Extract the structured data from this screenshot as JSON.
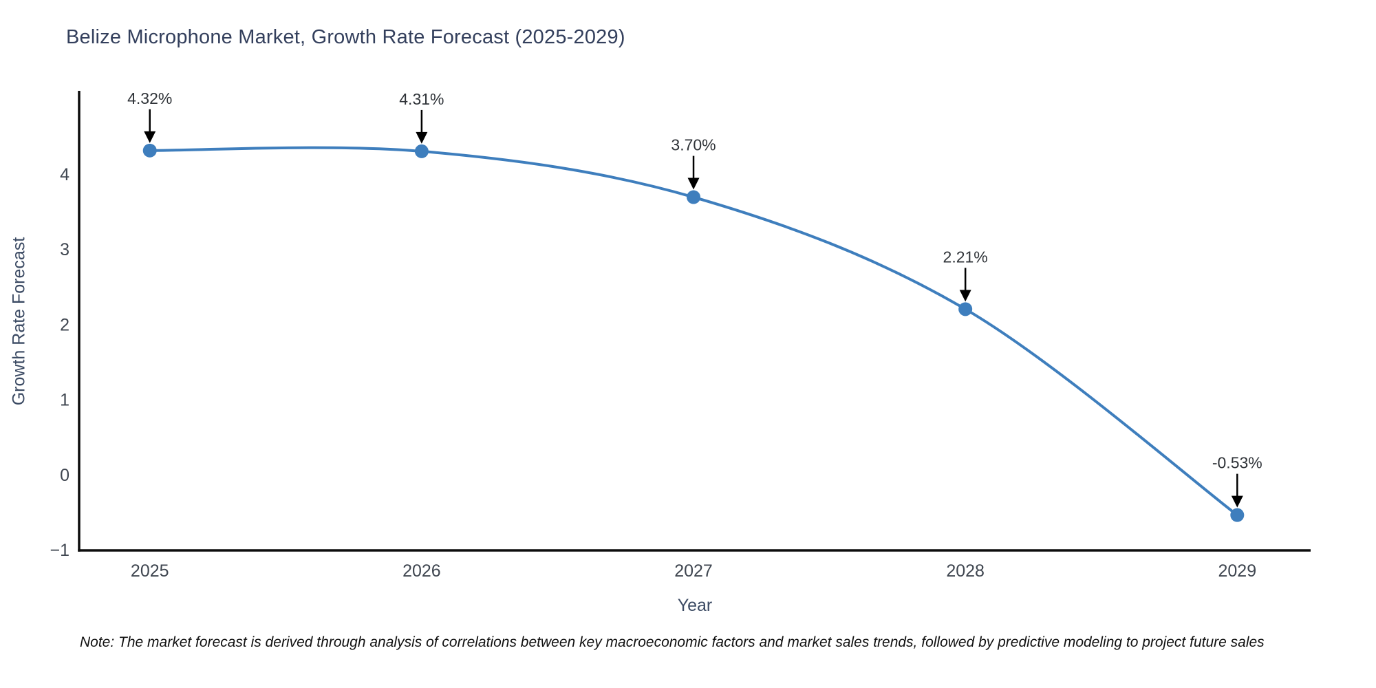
{
  "chart_data": {
    "type": "line",
    "title": "Belize Microphone Market, Growth Rate Forecast (2025-2029)",
    "xlabel": "Year",
    "ylabel": "Growth Rate Forecast",
    "x": [
      2025,
      2026,
      2027,
      2028,
      2029
    ],
    "series": [
      {
        "name": "Growth Rate Forecast",
        "values": [
          4.32,
          4.31,
          3.7,
          2.21,
          -0.53
        ],
        "point_labels": [
          "4.32%",
          "4.31%",
          "3.70%",
          "2.21%",
          "-0.53%"
        ]
      }
    ],
    "xticks": [
      "2025",
      "2026",
      "2027",
      "2028",
      "2029"
    ],
    "yticks": [
      "-1",
      "0",
      "1",
      "2",
      "3",
      "4"
    ],
    "ytick_values": [
      -1,
      0,
      1,
      2,
      3,
      4
    ],
    "xlim": [
      2024.74,
      2029.27
    ],
    "ylim": [
      -1,
      4.95
    ],
    "grid": false,
    "legend_position": "none",
    "line_shape": "spline",
    "marker": "circle",
    "annotation_style": "arrow-down-to-point",
    "colors": {
      "line": "#3e7ebd",
      "marker": "#3e7ebd",
      "arrow": "#000000",
      "annotation_text": "#2f3338",
      "tick_label": "#3f4650",
      "axis_line": "#0d0d0d",
      "title": "#333f5c",
      "axis_label": "#3b4a63",
      "background": "#ffffff"
    },
    "note": "Note: The market forecast is derived through analysis of correlations between key macroeconomic factors and market sales trends, followed by predictive modeling to project future sales"
  }
}
